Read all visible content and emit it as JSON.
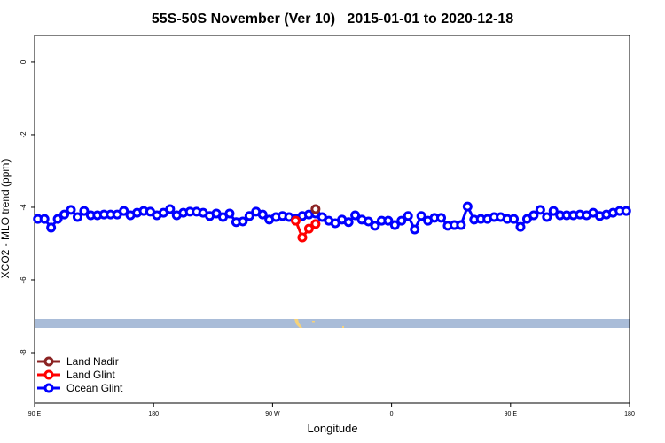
{
  "chart_data": {
    "type": "line",
    "title": "55S-50S November (Ver 10)   2015-01-01 to 2020-12-18",
    "xlabel": "Longitude",
    "ylabel": "XCO2 - MLO trend (ppm)",
    "xlim": [
      90,
      540
    ],
    "ylim": [
      -9.39,
      0.73
    ],
    "xticks": [
      {
        "value": 90,
        "label": "90 E"
      },
      180,
      {
        "value": 270,
        "label": "90 W"
      },
      {
        "value": 360,
        "label": "0"
      },
      {
        "value": 450,
        "label": "90 E"
      },
      {
        "value": 540,
        "label": "180"
      }
    ],
    "yticks": [
      0,
      -2,
      -4,
      -6,
      -8
    ],
    "legend": "bottom-left",
    "series": [
      {
        "name": "Land Nadir",
        "color": "#8b2323",
        "x": [
          302.5
        ],
        "values": [
          -4.05
        ]
      },
      {
        "name": "Land Glint",
        "color": "#ff0000",
        "x": [
          287.5,
          292.5,
          297.5,
          302.5
        ],
        "values": [
          -4.37,
          -4.83,
          -4.59,
          -4.46
        ]
      },
      {
        "name": "Ocean Glint",
        "color": "#0000ff",
        "x": [
          92.5,
          97.5,
          102.5,
          107.5,
          112.5,
          117.5,
          122.5,
          127.5,
          132.5,
          137.5,
          142.5,
          147.5,
          152.5,
          157.5,
          162.5,
          167.5,
          172.5,
          177.5,
          182.5,
          187.5,
          192.5,
          197.5,
          202.5,
          207.5,
          212.5,
          217.5,
          222.5,
          227.5,
          232.5,
          237.5,
          242.5,
          247.5,
          252.5,
          257.5,
          262.5,
          267.5,
          272.5,
          277.5,
          282.5,
          287.5,
          292.5,
          297.5,
          302.5,
          307.5,
          312.5,
          317.5,
          322.5,
          327.5,
          332.5,
          337.5,
          342.5,
          347.5,
          352.5,
          357.5,
          362.5,
          367.5,
          372.5,
          377.5,
          382.5,
          387.5,
          392.5,
          397.5,
          402.5,
          407.5,
          412.5,
          417.5,
          422.5,
          427.5,
          432.5,
          437.5,
          442.5,
          447.5,
          452.5,
          457.5,
          462.5,
          467.5,
          472.5,
          477.5,
          482.5,
          487.5,
          492.5,
          497.5,
          502.5,
          507.5,
          512.5,
          517.5,
          522.5,
          527.5,
          532.5,
          537.5
        ],
        "values": [
          -4.32,
          -4.32,
          -4.56,
          -4.32,
          -4.2,
          -4.07,
          -4.27,
          -4.1,
          -4.22,
          -4.22,
          -4.2,
          -4.2,
          -4.2,
          -4.1,
          -4.22,
          -4.15,
          -4.1,
          -4.12,
          -4.22,
          -4.15,
          -4.05,
          -4.22,
          -4.15,
          -4.12,
          -4.12,
          -4.15,
          -4.24,
          -4.17,
          -4.27,
          -4.17,
          -4.41,
          -4.39,
          -4.24,
          -4.12,
          -4.2,
          -4.34,
          -4.27,
          -4.24,
          -4.27,
          -4.32,
          -4.24,
          -4.2,
          -4.17,
          -4.27,
          -4.37,
          -4.44,
          -4.34,
          -4.41,
          -4.22,
          -4.34,
          -4.39,
          -4.51,
          -4.37,
          -4.37,
          -4.49,
          -4.37,
          -4.24,
          -4.61,
          -4.24,
          -4.37,
          -4.29,
          -4.29,
          -4.51,
          -4.49,
          -4.49,
          -3.98,
          -4.34,
          -4.32,
          -4.32,
          -4.27,
          -4.27,
          -4.32,
          -4.32,
          -4.54,
          -4.32,
          -4.22,
          -4.07,
          -4.27,
          -4.1,
          -4.22,
          -4.22,
          -4.22,
          -4.2,
          -4.22,
          -4.15,
          -4.24,
          -4.2,
          -4.15,
          -4.1,
          -4.1
        ]
      }
    ]
  }
}
